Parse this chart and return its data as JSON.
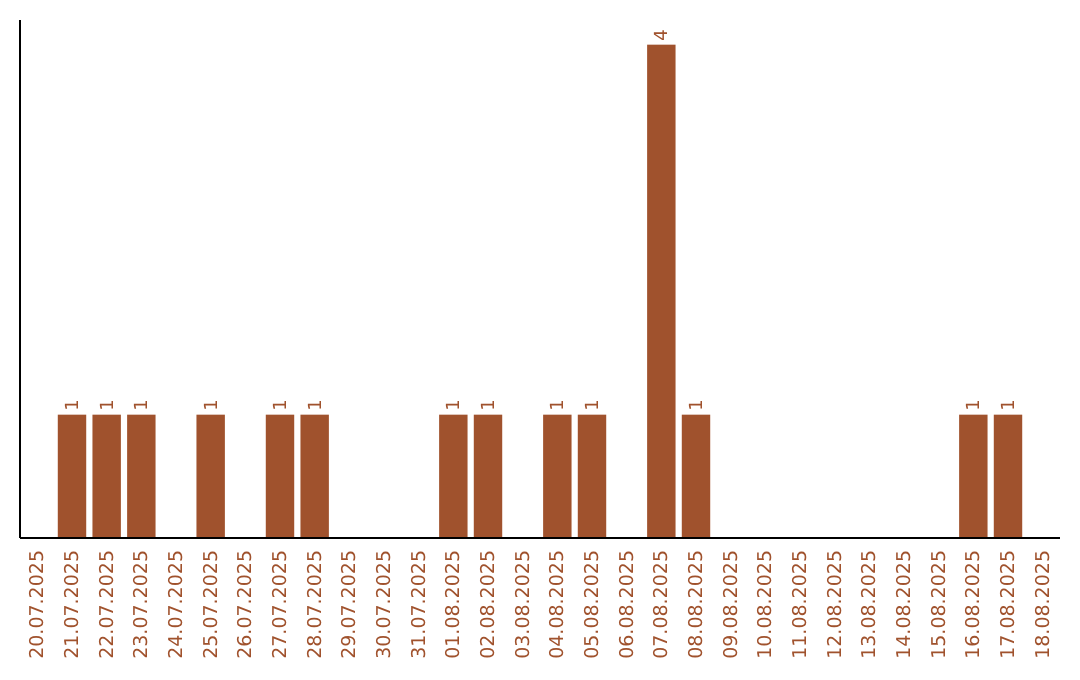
{
  "chart_data": {
    "type": "bar",
    "categories": [
      "20.07.2025",
      "21.07.2025",
      "22.07.2025",
      "23.07.2025",
      "24.07.2025",
      "25.07.2025",
      "26.07.2025",
      "27.07.2025",
      "28.07.2025",
      "29.07.2025",
      "30.07.2025",
      "31.07.2025",
      "01.08.2025",
      "02.08.2025",
      "03.08.2025",
      "04.08.2025",
      "05.08.2025",
      "06.08.2025",
      "07.08.2025",
      "08.08.2025",
      "09.08.2025",
      "10.08.2025",
      "11.08.2025",
      "12.08.2025",
      "13.08.2025",
      "14.08.2025",
      "15.08.2025",
      "16.08.2025",
      "17.08.2025",
      "18.08.2025"
    ],
    "values": [
      0,
      1,
      1,
      1,
      0,
      1,
      0,
      1,
      1,
      0,
      0,
      0,
      1,
      1,
      0,
      1,
      1,
      0,
      4,
      1,
      0,
      0,
      0,
      0,
      0,
      0,
      0,
      1,
      1,
      0
    ],
    "value_labels": [
      null,
      "1",
      "1",
      "1",
      null,
      "1",
      null,
      "1",
      "1",
      null,
      null,
      null,
      "1",
      "1",
      null,
      "1",
      "1",
      null,
      "4",
      "1",
      null,
      null,
      null,
      null,
      null,
      null,
      null,
      "1",
      "1",
      null
    ],
    "color": "#a0522d",
    "ylim": [
      0,
      4.2
    ],
    "tick_labels": "x"
  }
}
